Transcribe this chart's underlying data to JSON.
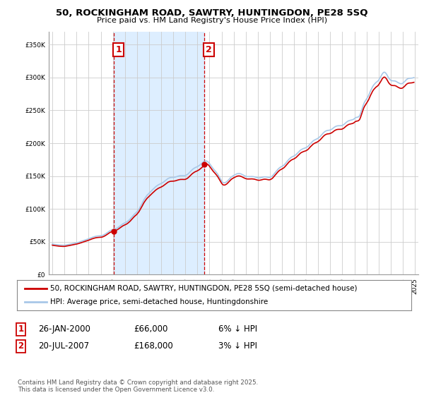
{
  "title": "50, ROCKINGHAM ROAD, SAWTRY, HUNTINGDON, PE28 5SQ",
  "subtitle": "Price paid vs. HM Land Registry's House Price Index (HPI)",
  "hpi_color": "#a8c8e8",
  "sale_color": "#cc0000",
  "vline_color": "#cc0000",
  "shade_color": "#ddeeff",
  "background_color": "#ffffff",
  "plot_bg_color": "#ffffff",
  "grid_color": "#cccccc",
  "ylim": [
    0,
    370000
  ],
  "yticks": [
    0,
    50000,
    100000,
    150000,
    200000,
    250000,
    300000,
    350000
  ],
  "sale1_date": 2000.07,
  "sale1_price": 66000,
  "sale2_date": 2007.55,
  "sale2_price": 168000,
  "legend_sale_label": "50, ROCKINGHAM ROAD, SAWTRY, HUNTINGDON, PE28 5SQ (semi-detached house)",
  "legend_hpi_label": "HPI: Average price, semi-detached house, Huntingdonshire",
  "footer": "Contains HM Land Registry data © Crown copyright and database right 2025.\nThis data is licensed under the Open Government Licence v3.0.",
  "hpi_data": [
    [
      1995.0,
      46500
    ],
    [
      1995.08,
      46200
    ],
    [
      1995.17,
      45900
    ],
    [
      1995.25,
      45700
    ],
    [
      1995.33,
      45500
    ],
    [
      1995.42,
      45300
    ],
    [
      1995.5,
      45100
    ],
    [
      1995.58,
      44900
    ],
    [
      1995.67,
      44800
    ],
    [
      1995.75,
      44700
    ],
    [
      1995.83,
      44600
    ],
    [
      1995.92,
      44500
    ],
    [
      1996.0,
      44600
    ],
    [
      1996.08,
      44800
    ],
    [
      1996.17,
      45100
    ],
    [
      1996.25,
      45400
    ],
    [
      1996.33,
      45700
    ],
    [
      1996.42,
      46000
    ],
    [
      1996.5,
      46300
    ],
    [
      1996.58,
      46600
    ],
    [
      1996.67,
      46900
    ],
    [
      1996.75,
      47200
    ],
    [
      1996.83,
      47500
    ],
    [
      1996.92,
      47800
    ],
    [
      1997.0,
      48200
    ],
    [
      1997.08,
      48600
    ],
    [
      1997.17,
      49100
    ],
    [
      1997.25,
      49600
    ],
    [
      1997.33,
      50100
    ],
    [
      1997.42,
      50600
    ],
    [
      1997.5,
      51200
    ],
    [
      1997.58,
      51700
    ],
    [
      1997.67,
      52300
    ],
    [
      1997.75,
      52800
    ],
    [
      1997.83,
      53300
    ],
    [
      1997.92,
      53800
    ],
    [
      1998.0,
      54400
    ],
    [
      1998.08,
      55000
    ],
    [
      1998.17,
      55600
    ],
    [
      1998.25,
      56200
    ],
    [
      1998.33,
      56800
    ],
    [
      1998.42,
      57300
    ],
    [
      1998.5,
      57800
    ],
    [
      1998.58,
      58200
    ],
    [
      1998.67,
      58500
    ],
    [
      1998.75,
      58700
    ],
    [
      1998.83,
      58800
    ],
    [
      1998.92,
      58800
    ],
    [
      1999.0,
      58900
    ],
    [
      1999.08,
      59200
    ],
    [
      1999.17,
      59700
    ],
    [
      1999.25,
      60300
    ],
    [
      1999.33,
      61100
    ],
    [
      1999.42,
      62100
    ],
    [
      1999.5,
      63200
    ],
    [
      1999.58,
      64300
    ],
    [
      1999.67,
      65400
    ],
    [
      1999.75,
      66400
    ],
    [
      1999.83,
      67200
    ],
    [
      1999.92,
      67900
    ],
    [
      2000.0,
      68300
    ],
    [
      2000.08,
      68700
    ],
    [
      2000.17,
      69200
    ],
    [
      2000.25,
      69800
    ],
    [
      2000.33,
      70600
    ],
    [
      2000.42,
      71500
    ],
    [
      2000.5,
      72600
    ],
    [
      2000.58,
      73800
    ],
    [
      2000.67,
      75000
    ],
    [
      2000.75,
      76100
    ],
    [
      2000.83,
      77100
    ],
    [
      2000.92,
      77900
    ],
    [
      2001.0,
      78600
    ],
    [
      2001.08,
      79400
    ],
    [
      2001.17,
      80300
    ],
    [
      2001.25,
      81400
    ],
    [
      2001.33,
      82700
    ],
    [
      2001.42,
      84200
    ],
    [
      2001.5,
      85900
    ],
    [
      2001.58,
      87700
    ],
    [
      2001.67,
      89500
    ],
    [
      2001.75,
      91200
    ],
    [
      2001.83,
      92700
    ],
    [
      2001.92,
      94100
    ],
    [
      2002.0,
      95600
    ],
    [
      2002.08,
      97500
    ],
    [
      2002.17,
      99700
    ],
    [
      2002.25,
      102300
    ],
    [
      2002.33,
      105100
    ],
    [
      2002.42,
      108100
    ],
    [
      2002.5,
      111100
    ],
    [
      2002.58,
      113900
    ],
    [
      2002.67,
      116400
    ],
    [
      2002.75,
      118600
    ],
    [
      2002.83,
      120600
    ],
    [
      2002.92,
      122300
    ],
    [
      2003.0,
      123900
    ],
    [
      2003.08,
      125400
    ],
    [
      2003.17,
      126900
    ],
    [
      2003.25,
      128400
    ],
    [
      2003.33,
      129900
    ],
    [
      2003.42,
      131400
    ],
    [
      2003.5,
      132900
    ],
    [
      2003.58,
      134200
    ],
    [
      2003.67,
      135400
    ],
    [
      2003.75,
      136400
    ],
    [
      2003.83,
      137200
    ],
    [
      2003.92,
      137900
    ],
    [
      2004.0,
      138600
    ],
    [
      2004.08,
      139400
    ],
    [
      2004.17,
      140400
    ],
    [
      2004.25,
      141600
    ],
    [
      2004.33,
      142900
    ],
    [
      2004.42,
      144200
    ],
    [
      2004.5,
      145400
    ],
    [
      2004.58,
      146400
    ],
    [
      2004.67,
      147100
    ],
    [
      2004.75,
      147600
    ],
    [
      2004.83,
      147800
    ],
    [
      2004.92,
      147900
    ],
    [
      2005.0,
      147900
    ],
    [
      2005.08,
      148100
    ],
    [
      2005.17,
      148400
    ],
    [
      2005.25,
      148900
    ],
    [
      2005.33,
      149400
    ],
    [
      2005.42,
      149900
    ],
    [
      2005.5,
      150300
    ],
    [
      2005.58,
      150600
    ],
    [
      2005.67,
      150700
    ],
    [
      2005.75,
      150700
    ],
    [
      2005.83,
      150600
    ],
    [
      2005.92,
      150600
    ],
    [
      2006.0,
      150800
    ],
    [
      2006.08,
      151400
    ],
    [
      2006.17,
      152400
    ],
    [
      2006.25,
      153600
    ],
    [
      2006.33,
      155100
    ],
    [
      2006.42,
      156700
    ],
    [
      2006.5,
      158300
    ],
    [
      2006.58,
      159800
    ],
    [
      2006.67,
      161100
    ],
    [
      2006.75,
      162100
    ],
    [
      2006.83,
      162900
    ],
    [
      2006.92,
      163600
    ],
    [
      2007.0,
      164300
    ],
    [
      2007.08,
      165200
    ],
    [
      2007.17,
      166300
    ],
    [
      2007.25,
      167600
    ],
    [
      2007.33,
      169000
    ],
    [
      2007.42,
      170400
    ],
    [
      2007.5,
      171600
    ],
    [
      2007.58,
      172500
    ],
    [
      2007.67,
      173000
    ],
    [
      2007.75,
      172900
    ],
    [
      2007.83,
      172200
    ],
    [
      2007.92,
      170900
    ],
    [
      2008.0,
      169100
    ],
    [
      2008.08,
      167000
    ],
    [
      2008.17,
      164800
    ],
    [
      2008.25,
      162700
    ],
    [
      2008.33,
      160700
    ],
    [
      2008.42,
      158900
    ],
    [
      2008.5,
      157200
    ],
    [
      2008.58,
      155300
    ],
    [
      2008.67,
      153200
    ],
    [
      2008.75,
      150700
    ],
    [
      2008.83,
      148000
    ],
    [
      2008.92,
      145200
    ],
    [
      2009.0,
      142600
    ],
    [
      2009.08,
      140700
    ],
    [
      2009.17,
      139700
    ],
    [
      2009.25,
      139700
    ],
    [
      2009.33,
      140200
    ],
    [
      2009.42,
      141200
    ],
    [
      2009.5,
      142600
    ],
    [
      2009.58,
      144200
    ],
    [
      2009.67,
      145900
    ],
    [
      2009.75,
      147500
    ],
    [
      2009.83,
      148900
    ],
    [
      2009.92,
      150000
    ],
    [
      2010.0,
      150900
    ],
    [
      2010.08,
      151700
    ],
    [
      2010.17,
      152500
    ],
    [
      2010.25,
      153200
    ],
    [
      2010.33,
      153700
    ],
    [
      2010.42,
      153900
    ],
    [
      2010.5,
      153800
    ],
    [
      2010.58,
      153400
    ],
    [
      2010.67,
      152700
    ],
    [
      2010.75,
      151900
    ],
    [
      2010.83,
      151100
    ],
    [
      2010.92,
      150300
    ],
    [
      2011.0,
      149700
    ],
    [
      2011.08,
      149300
    ],
    [
      2011.17,
      149100
    ],
    [
      2011.25,
      149100
    ],
    [
      2011.33,
      149100
    ],
    [
      2011.42,
      149200
    ],
    [
      2011.5,
      149300
    ],
    [
      2011.58,
      149200
    ],
    [
      2011.67,
      149000
    ],
    [
      2011.75,
      148700
    ],
    [
      2011.83,
      148200
    ],
    [
      2011.92,
      147700
    ],
    [
      2012.0,
      147300
    ],
    [
      2012.08,
      147100
    ],
    [
      2012.17,
      147200
    ],
    [
      2012.25,
      147500
    ],
    [
      2012.33,
      147900
    ],
    [
      2012.42,
      148400
    ],
    [
      2012.5,
      148700
    ],
    [
      2012.58,
      148800
    ],
    [
      2012.67,
      148700
    ],
    [
      2012.75,
      148400
    ],
    [
      2012.83,
      148000
    ],
    [
      2012.92,
      147800
    ],
    [
      2013.0,
      148000
    ],
    [
      2013.08,
      148600
    ],
    [
      2013.17,
      149600
    ],
    [
      2013.25,
      151000
    ],
    [
      2013.33,
      152800
    ],
    [
      2013.42,
      154700
    ],
    [
      2013.5,
      156700
    ],
    [
      2013.58,
      158600
    ],
    [
      2013.67,
      160300
    ],
    [
      2013.75,
      161800
    ],
    [
      2013.83,
      163000
    ],
    [
      2013.92,
      163900
    ],
    [
      2014.0,
      164700
    ],
    [
      2014.08,
      165600
    ],
    [
      2014.17,
      166800
    ],
    [
      2014.25,
      168300
    ],
    [
      2014.33,
      170100
    ],
    [
      2014.42,
      172000
    ],
    [
      2014.5,
      173900
    ],
    [
      2014.58,
      175600
    ],
    [
      2014.67,
      177100
    ],
    [
      2014.75,
      178300
    ],
    [
      2014.83,
      179200
    ],
    [
      2014.92,
      179900
    ],
    [
      2015.0,
      180600
    ],
    [
      2015.08,
      181500
    ],
    [
      2015.17,
      182700
    ],
    [
      2015.25,
      184200
    ],
    [
      2015.33,
      185800
    ],
    [
      2015.42,
      187400
    ],
    [
      2015.5,
      188900
    ],
    [
      2015.58,
      190100
    ],
    [
      2015.67,
      191000
    ],
    [
      2015.75,
      191700
    ],
    [
      2015.83,
      192200
    ],
    [
      2015.92,
      192700
    ],
    [
      2016.0,
      193300
    ],
    [
      2016.08,
      194200
    ],
    [
      2016.17,
      195500
    ],
    [
      2016.25,
      197100
    ],
    [
      2016.33,
      198900
    ],
    [
      2016.42,
      200600
    ],
    [
      2016.5,
      202200
    ],
    [
      2016.58,
      203500
    ],
    [
      2016.67,
      204600
    ],
    [
      2016.75,
      205400
    ],
    [
      2016.83,
      206100
    ],
    [
      2016.92,
      206800
    ],
    [
      2017.0,
      207700
    ],
    [
      2017.08,
      208900
    ],
    [
      2017.17,
      210400
    ],
    [
      2017.25,
      212100
    ],
    [
      2017.33,
      213900
    ],
    [
      2017.42,
      215600
    ],
    [
      2017.5,
      217000
    ],
    [
      2017.58,
      218100
    ],
    [
      2017.67,
      218900
    ],
    [
      2017.75,
      219400
    ],
    [
      2017.83,
      219600
    ],
    [
      2017.92,
      219800
    ],
    [
      2018.0,
      220200
    ],
    [
      2018.08,
      220900
    ],
    [
      2018.17,
      221900
    ],
    [
      2018.25,
      223100
    ],
    [
      2018.33,
      224300
    ],
    [
      2018.42,
      225300
    ],
    [
      2018.5,
      226000
    ],
    [
      2018.58,
      226400
    ],
    [
      2018.67,
      226600
    ],
    [
      2018.75,
      226600
    ],
    [
      2018.83,
      226600
    ],
    [
      2018.92,
      226700
    ],
    [
      2019.0,
      227200
    ],
    [
      2019.08,
      228000
    ],
    [
      2019.17,
      229200
    ],
    [
      2019.25,
      230500
    ],
    [
      2019.33,
      231900
    ],
    [
      2019.42,
      233100
    ],
    [
      2019.5,
      234000
    ],
    [
      2019.58,
      234600
    ],
    [
      2019.67,
      235000
    ],
    [
      2019.75,
      235300
    ],
    [
      2019.83,
      235700
    ],
    [
      2019.92,
      236400
    ],
    [
      2020.0,
      237500
    ],
    [
      2020.08,
      238700
    ],
    [
      2020.17,
      239400
    ],
    [
      2020.25,
      239600
    ],
    [
      2020.33,
      240100
    ],
    [
      2020.42,
      241700
    ],
    [
      2020.5,
      245100
    ],
    [
      2020.58,
      249700
    ],
    [
      2020.67,
      254600
    ],
    [
      2020.75,
      259000
    ],
    [
      2020.83,
      262400
    ],
    [
      2020.92,
      265000
    ],
    [
      2021.0,
      267300
    ],
    [
      2021.08,
      269800
    ],
    [
      2021.17,
      272700
    ],
    [
      2021.25,
      276100
    ],
    [
      2021.33,
      279600
    ],
    [
      2021.42,
      283000
    ],
    [
      2021.5,
      286000
    ],
    [
      2021.58,
      288400
    ],
    [
      2021.67,
      290300
    ],
    [
      2021.75,
      291900
    ],
    [
      2021.83,
      293200
    ],
    [
      2021.92,
      294400
    ],
    [
      2022.0,
      296100
    ],
    [
      2022.08,
      298400
    ],
    [
      2022.17,
      301100
    ],
    [
      2022.25,
      303900
    ],
    [
      2022.33,
      306300
    ],
    [
      2022.42,
      307900
    ],
    [
      2022.5,
      308200
    ],
    [
      2022.58,
      307000
    ],
    [
      2022.67,
      304800
    ],
    [
      2022.75,
      302000
    ],
    [
      2022.83,
      299400
    ],
    [
      2022.92,
      297300
    ],
    [
      2023.0,
      296000
    ],
    [
      2023.08,
      295300
    ],
    [
      2023.17,
      295000
    ],
    [
      2023.25,
      295000
    ],
    [
      2023.33,
      294900
    ],
    [
      2023.42,
      294400
    ],
    [
      2023.5,
      293600
    ],
    [
      2023.58,
      292600
    ],
    [
      2023.67,
      291700
    ],
    [
      2023.75,
      291000
    ],
    [
      2023.83,
      290600
    ],
    [
      2023.92,
      290700
    ],
    [
      2024.0,
      291400
    ],
    [
      2024.08,
      292600
    ],
    [
      2024.17,
      294200
    ],
    [
      2024.25,
      295900
    ],
    [
      2024.33,
      297300
    ],
    [
      2024.42,
      298300
    ],
    [
      2024.5,
      298800
    ],
    [
      2024.58,
      298900
    ],
    [
      2024.67,
      299000
    ],
    [
      2024.75,
      299200
    ],
    [
      2024.83,
      299500
    ],
    [
      2024.92,
      300000
    ]
  ]
}
